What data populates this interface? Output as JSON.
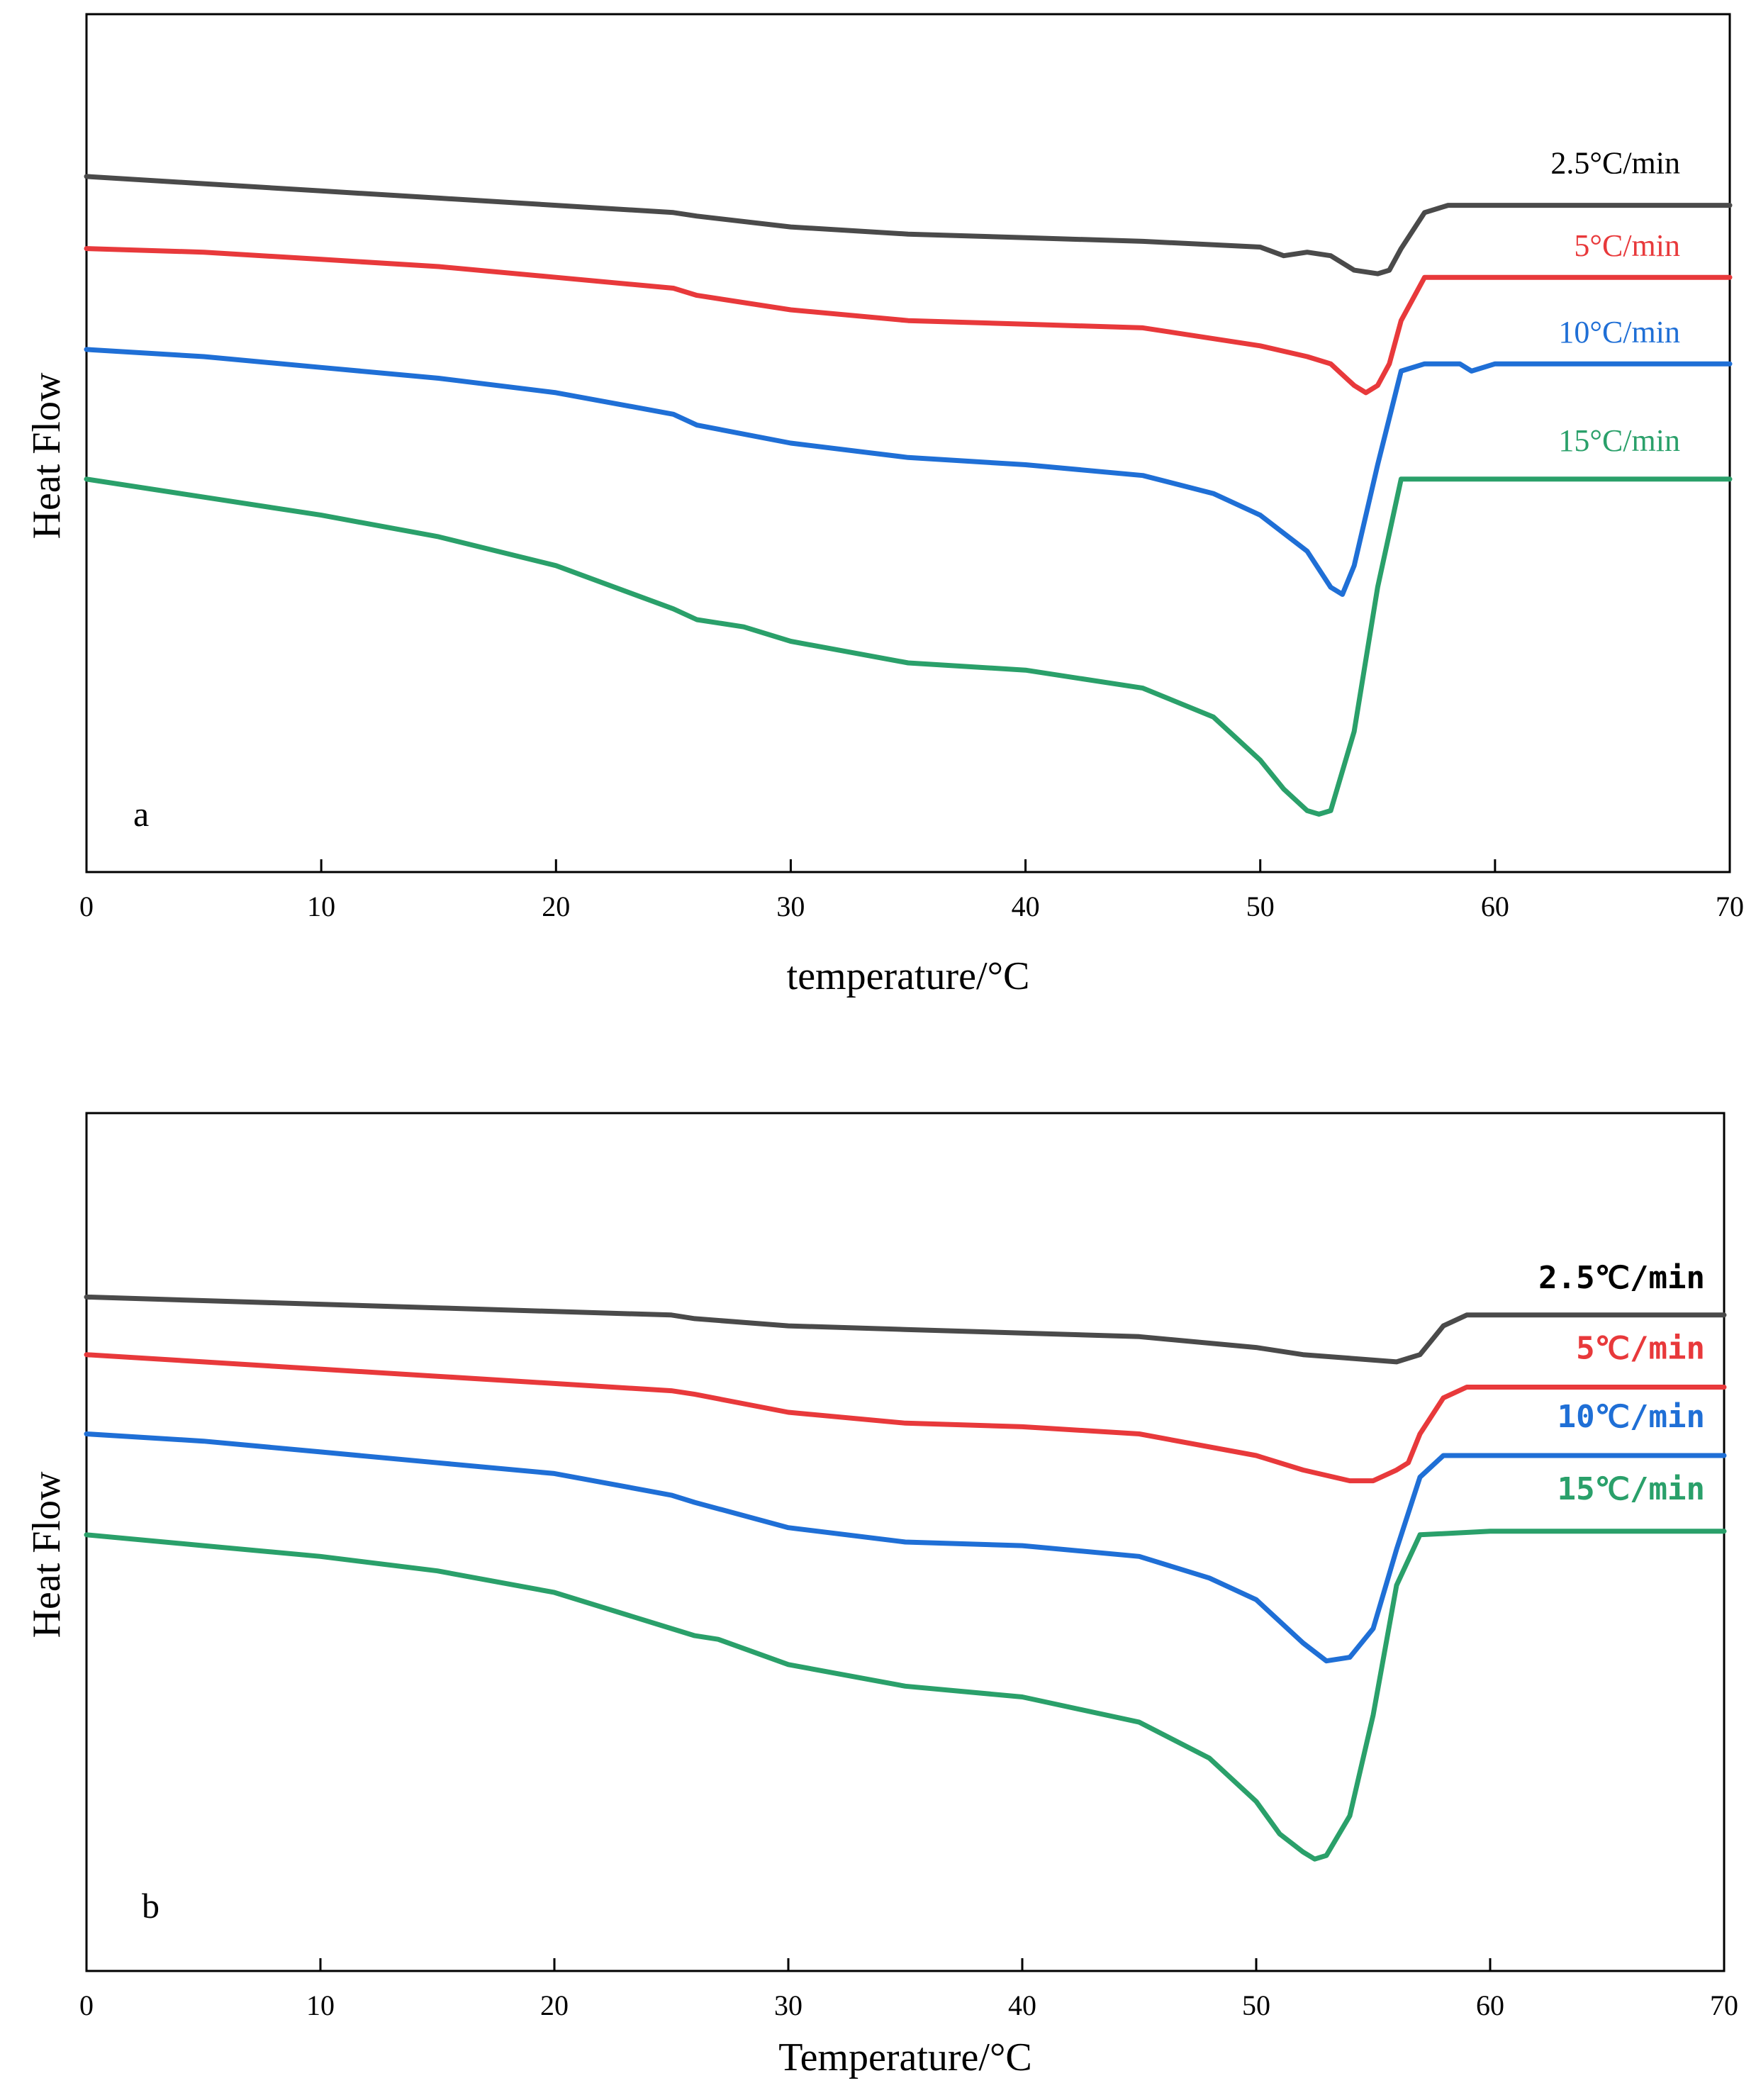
{
  "colors": {
    "2.5": "#4a4a4a",
    "5": "#e8393b",
    "10": "#1f6fd6",
    "15": "#2aa06a"
  },
  "chart_data": [
    {
      "type": "line",
      "panel_label": "a",
      "xlabel": "temperature/°C",
      "ylabel": "Heat Flow",
      "xlim": [
        0,
        70
      ],
      "x_ticks": [
        "0",
        "10",
        "20",
        "30",
        "40",
        "50",
        "60",
        "70"
      ],
      "ylim": [
        0,
        100
      ],
      "y_ticks_shown": false,
      "grid": false,
      "series_label_font": "serif",
      "series": [
        {
          "name": "2.5°C/min",
          "color_key": "2.5",
          "x": [
            0,
            5,
            10,
            15,
            20,
            25,
            26,
            30,
            35,
            40,
            45,
            50,
            51,
            52,
            53,
            54,
            55,
            55.5,
            56,
            57,
            58,
            60,
            65,
            70
          ],
          "y": [
            87,
            86,
            85,
            84,
            83,
            82,
            81.5,
            80,
            79,
            78.5,
            78,
            77.2,
            76,
            76.5,
            76,
            74,
            73.5,
            74,
            77,
            82,
            83,
            83,
            83,
            83
          ]
        },
        {
          "name": "5°C/min",
          "color_key": "5",
          "x": [
            0,
            5,
            10,
            15,
            20,
            25,
            26,
            30,
            35,
            40,
            45,
            50,
            52,
            53,
            54,
            54.5,
            55,
            55.5,
            56,
            57,
            58,
            60,
            65,
            70
          ],
          "y": [
            77,
            76.5,
            75.5,
            74.5,
            73,
            71.5,
            70.5,
            68.5,
            67,
            66.5,
            66,
            63.5,
            62,
            61,
            58,
            57,
            58,
            61,
            67,
            73,
            73,
            73,
            73,
            73
          ]
        },
        {
          "name": "10°C/min",
          "color_key": "10",
          "x": [
            0,
            5,
            10,
            15,
            20,
            25,
            26,
            30,
            35,
            40,
            45,
            48,
            50,
            52,
            53,
            53.5,
            54,
            55,
            56,
            57,
            58.5,
            59,
            60,
            65,
            70
          ],
          "y": [
            63,
            62,
            60.5,
            59,
            57,
            54,
            52.5,
            50,
            48,
            47,
            45.5,
            43,
            40,
            35,
            30,
            29,
            33,
            47,
            60,
            61,
            61,
            60,
            61,
            61,
            61
          ]
        },
        {
          "name": "15°C/min",
          "color_key": "15",
          "x": [
            0,
            5,
            10,
            15,
            20,
            25,
            26,
            28,
            30,
            35,
            40,
            45,
            48,
            50,
            51,
            52,
            52.5,
            53,
            54,
            55,
            56,
            57,
            60,
            65,
            70
          ],
          "y": [
            45,
            42.5,
            40,
            37,
            33,
            27,
            25.5,
            24.5,
            22.5,
            19.5,
            18.5,
            16,
            12,
            6,
            2,
            -1,
            -1.5,
            -1,
            10,
            30,
            45,
            45,
            45,
            45,
            45
          ]
        }
      ]
    },
    {
      "type": "line",
      "panel_label": "b",
      "xlabel": "Temperature/°C",
      "ylabel": "Heat Flow",
      "xlim": [
        0,
        70
      ],
      "x_ticks": [
        "0",
        "10",
        "20",
        "30",
        "40",
        "50",
        "60",
        "70"
      ],
      "ylim": [
        0,
        100
      ],
      "y_ticks_shown": false,
      "grid": false,
      "series_label_font": "monospace-bold",
      "series": [
        {
          "name": "2.5℃/min",
          "color_key": "2.5",
          "x": [
            0,
            5,
            10,
            15,
            20,
            25,
            26,
            30,
            35,
            40,
            45,
            50,
            52,
            54,
            56,
            57,
            57.5,
            58,
            59,
            60,
            65,
            70
          ],
          "y": [
            84,
            83.5,
            83,
            82.5,
            82,
            81.5,
            81,
            80,
            79.5,
            79,
            78.5,
            77,
            76,
            75.5,
            75,
            76,
            78,
            80,
            81.5,
            81.5,
            81.5,
            81.5
          ]
        },
        {
          "name": "5℃/min",
          "color_key": "5",
          "x": [
            0,
            5,
            10,
            15,
            20,
            25,
            26,
            30,
            35,
            40,
            45,
            50,
            52,
            54,
            55,
            56,
            56.5,
            57,
            58,
            59,
            60,
            65,
            70
          ],
          "y": [
            76,
            75,
            74,
            73,
            72,
            71,
            70.5,
            68,
            66.5,
            66,
            65,
            62,
            60,
            58.5,
            58.5,
            60,
            61,
            65,
            70,
            71.5,
            71.5,
            71.5,
            71.5
          ]
        },
        {
          "name": "10℃/min",
          "color_key": "10",
          "x": [
            0,
            5,
            10,
            15,
            20,
            25,
            26,
            30,
            35,
            40,
            45,
            48,
            50,
            52,
            53,
            54,
            55,
            56,
            57,
            58,
            60,
            65,
            70
          ],
          "y": [
            65,
            64,
            62.5,
            61,
            59.5,
            56.5,
            55.5,
            52,
            50,
            49.5,
            48,
            45,
            42,
            36,
            33.5,
            34,
            38,
            49,
            59,
            62,
            62,
            62,
            62
          ]
        },
        {
          "name": "15℃/min",
          "color_key": "15",
          "x": [
            0,
            5,
            10,
            15,
            20,
            25,
            26,
            27,
            30,
            35,
            40,
            45,
            48,
            50,
            51,
            52,
            52.5,
            53,
            54,
            55,
            56,
            57,
            60,
            65,
            70
          ],
          "y": [
            51,
            49.5,
            48,
            46,
            43,
            38,
            37,
            36.5,
            33,
            30,
            28.5,
            25,
            20,
            14,
            9.5,
            7,
            6,
            6.5,
            12,
            26,
            44,
            51,
            51.5,
            51.5,
            51.5
          ]
        }
      ]
    }
  ]
}
